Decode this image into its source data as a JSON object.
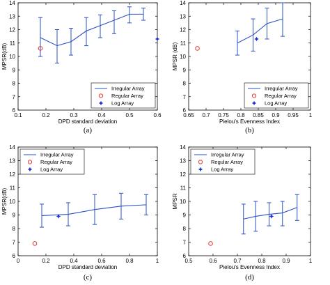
{
  "colors": {
    "irregular": "#2b4fc6",
    "regular": "#e23b2e",
    "log": "#1a2fd6",
    "axis": "#000000"
  },
  "chart_data": [
    {
      "type": "line",
      "panel_label": "(a)",
      "xlabel": "DPD standard deviation",
      "ylabel": "MPSR(dB)",
      "xlim": [
        0.1,
        0.6
      ],
      "ylim": [
        6,
        14
      ],
      "xticks": [
        "0.1",
        "0.2",
        "0.3",
        "0.4",
        "0.5",
        "0.6"
      ],
      "yticks": [
        "6",
        "7",
        "8",
        "9",
        "10",
        "11",
        "12",
        "13",
        "14"
      ],
      "legend_position": "bottom-right",
      "grid": false,
      "series": [
        {
          "name": "Irregular Array",
          "kind": "errorbar",
          "points": [
            {
              "x": 0.18,
              "y": 11.4,
              "low": 10.0,
              "high": 12.9
            },
            {
              "x": 0.24,
              "y": 10.8,
              "low": 9.5,
              "high": 12.0
            },
            {
              "x": 0.29,
              "y": 11.1,
              "low": 10.1,
              "high": 12.1
            },
            {
              "x": 0.345,
              "y": 11.9,
              "low": 10.8,
              "high": 12.9
            },
            {
              "x": 0.395,
              "y": 12.3,
              "low": 11.4,
              "high": 13.1
            },
            {
              "x": 0.445,
              "y": 12.7,
              "low": 11.7,
              "high": 13.4
            },
            {
              "x": 0.5,
              "y": 13.15,
              "low": 12.5,
              "high": 13.7
            },
            {
              "x": 0.55,
              "y": 13.15,
              "low": 12.7,
              "high": 13.6
            }
          ]
        },
        {
          "name": "Regular Array",
          "kind": "circle",
          "points": [
            {
              "x": 0.18,
              "y": 10.6
            }
          ]
        },
        {
          "name": "Log Array",
          "kind": "star",
          "points": [
            {
              "x": 0.6,
              "y": 11.3
            }
          ]
        }
      ]
    },
    {
      "type": "line",
      "panel_label": "(b)",
      "xlabel": "Pielou's Evenness Index",
      "ylabel": "MPSR (dB)",
      "xlim": [
        0.65,
        1.0
      ],
      "ylim": [
        6,
        14
      ],
      "xticks": [
        "0.65",
        "0.7",
        "0.75",
        "0.8",
        "0.85",
        "0.9",
        "0.95",
        "1"
      ],
      "yticks": [
        "6",
        "7",
        "8",
        "9",
        "10",
        "11",
        "12",
        "13",
        "14"
      ],
      "legend_position": "bottom-right",
      "grid": false,
      "series": [
        {
          "name": "Irregular Array",
          "kind": "errorbar",
          "points": [
            {
              "x": 0.79,
              "y": 11.0,
              "low": 10.1,
              "high": 11.9
            },
            {
              "x": 0.835,
              "y": 11.6,
              "low": 10.4,
              "high": 12.8
            },
            {
              "x": 0.875,
              "y": 12.45,
              "low": 11.3,
              "high": 13.6
            },
            {
              "x": 0.92,
              "y": 12.8,
              "low": 11.5,
              "high": 14.0
            }
          ]
        },
        {
          "name": "Regular Array",
          "kind": "circle",
          "points": [
            {
              "x": 0.675,
              "y": 10.6
            }
          ]
        },
        {
          "name": "Log Array",
          "kind": "star",
          "points": [
            {
              "x": 0.845,
              "y": 11.3
            }
          ]
        }
      ]
    },
    {
      "type": "line",
      "panel_label": "(c)",
      "xlabel": "DPD standard deviation",
      "ylabel": "MPSR(dB)",
      "xlim": [
        0,
        1
      ],
      "ylim": [
        6,
        14
      ],
      "xticks": [
        "0",
        "0.2",
        "0.4",
        "0.6",
        "0.8",
        "1"
      ],
      "yticks": [
        "6",
        "7",
        "8",
        "9",
        "10",
        "11",
        "12",
        "13",
        "14"
      ],
      "legend_position": "top-left",
      "grid": false,
      "series": [
        {
          "name": "Irregular Array",
          "kind": "errorbar",
          "points": [
            {
              "x": 0.17,
              "y": 8.95,
              "low": 8.1,
              "high": 9.8
            },
            {
              "x": 0.36,
              "y": 9.05,
              "low": 8.2,
              "high": 9.9
            },
            {
              "x": 0.55,
              "y": 9.4,
              "low": 8.3,
              "high": 10.5
            },
            {
              "x": 0.74,
              "y": 9.65,
              "low": 8.7,
              "high": 10.6
            },
            {
              "x": 0.92,
              "y": 9.75,
              "low": 9.0,
              "high": 10.5
            }
          ]
        },
        {
          "name": "Regular Array",
          "kind": "circle",
          "points": [
            {
              "x": 0.12,
              "y": 6.9
            }
          ]
        },
        {
          "name": "Log Array",
          "kind": "star",
          "points": [
            {
              "x": 0.29,
              "y": 8.9
            }
          ]
        }
      ]
    },
    {
      "type": "line",
      "panel_label": "(d)",
      "xlabel": "Pielou's Evenness Index",
      "ylabel": "MPSR",
      "xlim": [
        0.5,
        1.0
      ],
      "ylim": [
        6,
        14
      ],
      "xticks": [
        "0.5",
        "0.6",
        "0.7",
        "0.8",
        "0.9",
        "1"
      ],
      "yticks": [
        "6",
        "7",
        "8",
        "9",
        "10",
        "11",
        "12",
        "13",
        "14"
      ],
      "legend_position": "top-left",
      "grid": false,
      "series": [
        {
          "name": "Irregular Array",
          "kind": "errorbar",
          "points": [
            {
              "x": 0.725,
              "y": 8.7,
              "low": 7.6,
              "high": 9.8
            },
            {
              "x": 0.775,
              "y": 8.9,
              "low": 7.8,
              "high": 10.0
            },
            {
              "x": 0.83,
              "y": 9.05,
              "low": 8.2,
              "high": 9.9
            },
            {
              "x": 0.885,
              "y": 9.15,
              "low": 8.2,
              "high": 10.0
            },
            {
              "x": 0.945,
              "y": 9.55,
              "low": 8.6,
              "high": 10.5
            }
          ]
        },
        {
          "name": "Regular Array",
          "kind": "circle",
          "points": [
            {
              "x": 0.59,
              "y": 6.9
            }
          ]
        },
        {
          "name": "Log Array",
          "kind": "star",
          "points": [
            {
              "x": 0.84,
              "y": 8.9
            }
          ]
        }
      ]
    }
  ]
}
